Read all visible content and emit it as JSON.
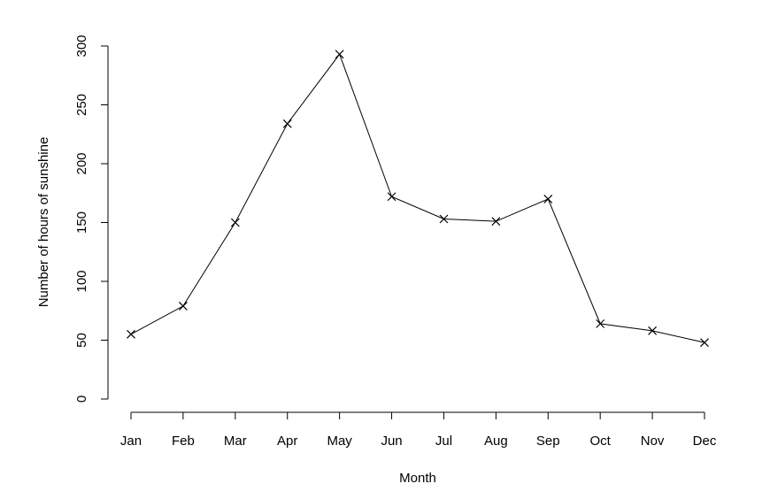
{
  "chart_data": {
    "type": "line",
    "x_label": "Month",
    "y_label": "Number of hours of sunshine",
    "categories": [
      "Jan",
      "Feb",
      "Mar",
      "Apr",
      "May",
      "Jun",
      "Jul",
      "Aug",
      "Sep",
      "Oct",
      "Nov",
      "Dec"
    ],
    "values": [
      55,
      79,
      150,
      234,
      293,
      172,
      153,
      151,
      170,
      64,
      58,
      48
    ],
    "color": "#000000",
    "marker": "x",
    "ylim": [
      0,
      300
    ],
    "yticks": [
      0,
      50,
      100,
      150,
      200,
      250,
      300
    ]
  }
}
